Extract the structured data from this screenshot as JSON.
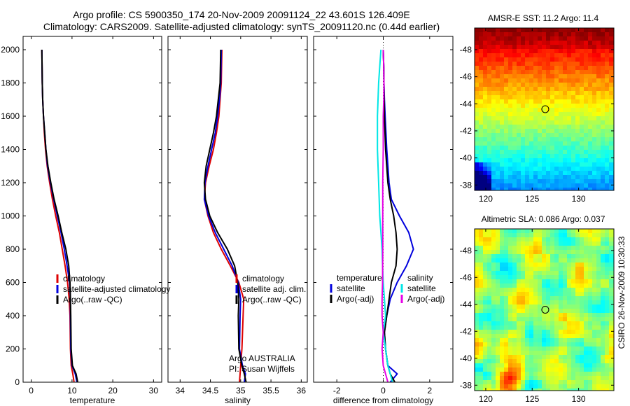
{
  "header": {
    "line1": "Argo profile: CS 5900350_174 20-Nov-2009 20091124_22 43.601S 126.409E",
    "line2": "Climatology: CARS2009. Satellite-adjusted climatology: synTS_20091120.nc (0.44d earlier)"
  },
  "side_label": "CSIRO 26-Nov-2009 10:30:33",
  "colors": {
    "red": "#dd0000",
    "blue": "#0000dd",
    "black": "#000000",
    "cyan": "#00e6e6",
    "magenta": "#e600e6"
  },
  "chart_data": [
    {
      "type": "line",
      "id": "temperature",
      "xlabel": "temperature",
      "xlim": [
        -2,
        32
      ],
      "xticks": [
        0,
        10,
        20,
        30
      ],
      "ylim": [
        2080,
        0
      ],
      "yticks": [
        0,
        200,
        400,
        600,
        800,
        1000,
        1200,
        1400,
        1600,
        1800,
        2000
      ],
      "legend": [
        "climatology",
        "satellite-adjusted climatology",
        "Argo(..raw -QC)"
      ],
      "series": [
        {
          "name": "climatology",
          "color": "red",
          "x": [
            10.5,
            10.2,
            9.8,
            9.6,
            9.5,
            9.3,
            8.9,
            8.3,
            7.6,
            6.9,
            6.0,
            5.2,
            4.5,
            3.9,
            3.5,
            3.2,
            3.0,
            2.8,
            2.7,
            2.6
          ],
          "y": [
            0,
            50,
            100,
            200,
            400,
            500,
            600,
            700,
            800,
            900,
            1000,
            1100,
            1200,
            1300,
            1400,
            1500,
            1600,
            1700,
            1800,
            2000
          ]
        },
        {
          "name": "satellite-adjusted climatology",
          "color": "blue",
          "x": [
            11.2,
            10.8,
            10.0,
            9.7,
            9.6,
            9.6,
            9.4,
            8.8,
            8.1,
            7.3,
            6.4,
            5.5,
            4.7,
            4.0,
            3.6,
            3.3,
            3.0,
            2.8,
            2.7,
            2.6
          ],
          "y": [
            0,
            50,
            100,
            200,
            400,
            500,
            600,
            700,
            800,
            900,
            1000,
            1100,
            1200,
            1300,
            1400,
            1500,
            1600,
            1700,
            1800,
            2000
          ]
        },
        {
          "name": "Argo(..raw -QC)",
          "color": "black",
          "x": [
            11.4,
            11.0,
            10.1,
            9.8,
            9.7,
            9.6,
            9.5,
            9.2,
            8.5,
            7.5,
            6.6,
            5.6,
            4.8,
            4.1,
            3.6,
            3.3,
            3.0,
            2.8,
            2.7,
            2.6
          ],
          "y": [
            0,
            50,
            100,
            200,
            400,
            500,
            600,
            700,
            800,
            900,
            1000,
            1100,
            1200,
            1300,
            1400,
            1500,
            1600,
            1700,
            1800,
            2000
          ]
        }
      ]
    },
    {
      "type": "line",
      "id": "salinity",
      "xlabel": "salinity",
      "xlim": [
        33.8,
        36.1
      ],
      "xticks": [
        34,
        34.5,
        35,
        35.5,
        36
      ],
      "ylim": [
        2080,
        0
      ],
      "yticks": [
        0,
        200,
        400,
        600,
        800,
        1000,
        1200,
        1400,
        1600,
        1800,
        2000
      ],
      "legend": [
        "climatology",
        "satellite adj. clim.",
        "Argo(..raw -QC)"
      ],
      "annotation": [
        "Argo AUSTRALIA",
        "PI: Susan Wijffels"
      ],
      "series": [
        {
          "name": "climatology",
          "color": "red",
          "x": [
            34.98,
            34.99,
            35.0,
            35.02,
            35.04,
            35.05,
            34.97,
            34.83,
            34.68,
            34.55,
            34.46,
            34.4,
            34.42,
            34.48,
            34.55,
            34.6,
            34.64,
            34.66,
            34.68,
            34.69
          ],
          "y": [
            0,
            50,
            100,
            200,
            400,
            500,
            600,
            700,
            800,
            900,
            1000,
            1100,
            1200,
            1300,
            1400,
            1500,
            1600,
            1700,
            1800,
            2000
          ]
        },
        {
          "name": "satellite adj. clim.",
          "color": "blue",
          "x": [
            35.06,
            35.08,
            35.03,
            34.98,
            34.99,
            35.0,
            34.96,
            34.86,
            34.72,
            34.58,
            34.47,
            34.4,
            34.41,
            34.46,
            34.52,
            34.58,
            34.62,
            34.65,
            34.67,
            34.68
          ],
          "y": [
            0,
            50,
            100,
            200,
            400,
            500,
            600,
            700,
            800,
            900,
            1000,
            1100,
            1200,
            1300,
            1400,
            1500,
            1600,
            1700,
            1800,
            2000
          ]
        },
        {
          "name": "Argo(..raw -QC)",
          "color": "black",
          "x": [
            35.09,
            35.06,
            35.02,
            34.97,
            34.96,
            34.97,
            34.95,
            34.9,
            34.78,
            34.62,
            34.49,
            34.42,
            34.4,
            34.43,
            34.49,
            34.55,
            34.6,
            34.63,
            34.66,
            34.67
          ],
          "y": [
            0,
            50,
            100,
            200,
            400,
            500,
            600,
            700,
            800,
            900,
            1000,
            1100,
            1200,
            1300,
            1400,
            1500,
            1600,
            1700,
            1800,
            2000
          ]
        }
      ]
    },
    {
      "type": "line",
      "id": "difference",
      "xlabel": "difference from climatology",
      "xlim": [
        -3.0,
        3.0
      ],
      "xticks": [
        -2,
        0,
        2
      ],
      "ylim": [
        2080,
        0
      ],
      "yticks": [
        0,
        200,
        400,
        600,
        800,
        1000,
        1200,
        1400,
        1600,
        1800,
        2000
      ],
      "legend_left_title": "temperature",
      "legend_right_title": "salinity",
      "legend_left": [
        "satellite",
        "Argo(-adj)"
      ],
      "legend_right": [
        "satellite",
        "Argo(-adj)"
      ],
      "series": [
        {
          "name": "temperature satellite",
          "color": "blue",
          "x": [
            0.3,
            0.6,
            0.2,
            0.1,
            0.05,
            0.15,
            0.3,
            0.6,
            1.0,
            1.3,
            1.1,
            0.7,
            0.35,
            0.25,
            0.15,
            0.08,
            0.05,
            0.03,
            0.02,
            0.0
          ],
          "y": [
            0,
            50,
            100,
            200,
            300,
            400,
            500,
            600,
            700,
            800,
            900,
            1000,
            1100,
            1200,
            1400,
            1600,
            1700,
            1800,
            1900,
            2000
          ]
        },
        {
          "name": "temperature Argo(-adj)",
          "color": "black",
          "x": [
            0.5,
            0.3,
            0.2,
            0.1,
            0.05,
            0.15,
            0.25,
            0.35,
            0.55,
            0.6,
            0.55,
            0.45,
            0.3,
            0.2,
            0.1,
            0.05,
            0.03,
            0.02,
            0.0
          ],
          "y": [
            0,
            50,
            100,
            200,
            300,
            400,
            500,
            600,
            700,
            800,
            900,
            1000,
            1100,
            1200,
            1400,
            1600,
            1800,
            1900,
            2000
          ]
        },
        {
          "name": "salinity satellite",
          "color": "cyan",
          "x": [
            0.4,
            0.3,
            0.2,
            0.1,
            0.0,
            0.1,
            0.05,
            0.0,
            -0.03,
            -0.05,
            -0.1,
            -0.15,
            -0.2,
            -0.25,
            -0.25,
            -0.2,
            -0.15,
            -0.1
          ],
          "y": [
            0,
            50,
            100,
            200,
            300,
            400,
            500,
            600,
            700,
            800,
            900,
            1000,
            1200,
            1400,
            1600,
            1800,
            1900,
            2000
          ]
        },
        {
          "name": "salinity Argo(-adj)",
          "color": "magenta",
          "x": [
            0.2,
            0.1,
            0.0,
            -0.05,
            0.0,
            -0.05,
            -0.05,
            -0.03,
            -0.02,
            -0.02,
            -0.02,
            0.0,
            0.0,
            0.02,
            0.03,
            0.02,
            0.0
          ],
          "y": [
            0,
            50,
            100,
            200,
            300,
            400,
            500,
            600,
            800,
            1000,
            1200,
            1400,
            1600,
            1700,
            1800,
            1900,
            2000
          ]
        }
      ]
    },
    {
      "type": "heatmap",
      "id": "sst",
      "title": "AMSR-E SST: 11.2  Argo: 11.4",
      "xlim": [
        118.8,
        133.8
      ],
      "ylim": [
        -49.6,
        -37.6
      ],
      "xticks": [
        120,
        125,
        130
      ],
      "yticks": [
        -38,
        -40,
        -42,
        -44,
        -46,
        -48
      ],
      "marker": {
        "lon": 126.409,
        "lat": -43.601
      }
    },
    {
      "type": "heatmap",
      "id": "sla",
      "title": "Altimetric SLA: 0.086  Argo: 0.037",
      "xlim": [
        118.8,
        133.8
      ],
      "ylim": [
        -49.6,
        -37.6
      ],
      "xticks": [
        120,
        125,
        130
      ],
      "yticks": [
        -38,
        -40,
        -42,
        -44,
        -46,
        -48
      ],
      "marker": {
        "lon": 126.409,
        "lat": -43.601
      }
    }
  ]
}
